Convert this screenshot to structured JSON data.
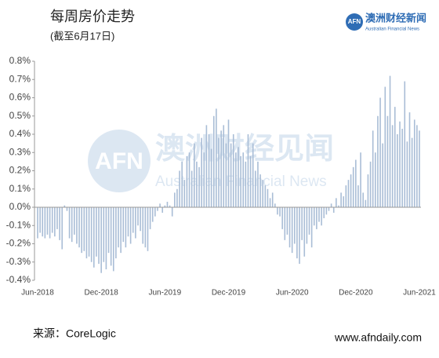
{
  "chart_data": {
    "type": "bar",
    "title": "每周房价走势",
    "subtitle": "(截至6月17日)",
    "source": "来源：CoreLogic",
    "website": "www.afndaily.com",
    "color": "#a9bdd6",
    "categories": [
      "Jun-2018",
      null,
      null,
      null,
      null,
      null,
      null,
      null,
      null,
      null,
      null,
      null,
      null,
      null,
      null,
      null,
      null,
      null,
      null,
      null,
      null,
      null,
      null,
      null,
      null,
      null,
      "Dec-2018",
      null,
      null,
      null,
      null,
      null,
      null,
      null,
      null,
      null,
      null,
      null,
      null,
      null,
      null,
      null,
      null,
      null,
      null,
      null,
      null,
      null,
      null,
      null,
      null,
      null,
      "Jun-2019",
      null,
      null,
      null,
      null,
      null,
      null,
      null,
      null,
      null,
      null,
      null,
      null,
      null,
      null,
      null,
      null,
      null,
      null,
      null,
      null,
      null,
      null,
      null,
      null,
      null,
      "Dec-2019",
      null,
      null,
      null,
      null,
      null,
      null,
      null,
      null,
      null,
      null,
      null,
      null,
      null,
      null,
      null,
      null,
      null,
      null,
      null,
      null,
      null,
      null,
      null,
      null,
      null,
      "Jun-2020",
      null,
      null,
      null,
      null,
      null,
      null,
      null,
      null,
      null,
      null,
      null,
      null,
      null,
      null,
      null,
      null,
      null,
      null,
      null,
      null,
      null,
      null,
      null,
      null,
      null,
      "Dec-2020",
      null,
      null,
      null,
      null,
      null,
      null,
      null,
      null,
      null,
      null,
      null,
      null,
      null,
      null,
      null,
      null,
      null,
      null,
      null,
      null,
      null,
      null,
      null,
      null,
      null,
      "Jun-2021"
    ],
    "values": [
      -0.17,
      -0.14,
      -0.16,
      -0.17,
      -0.15,
      -0.17,
      -0.14,
      -0.16,
      -0.12,
      -0.18,
      -0.23,
      0.01,
      -0.02,
      -0.17,
      -0.19,
      -0.15,
      -0.2,
      -0.22,
      -0.25,
      -0.24,
      -0.28,
      -0.27,
      -0.3,
      -0.33,
      -0.27,
      -0.31,
      -0.36,
      -0.3,
      -0.34,
      -0.25,
      -0.32,
      -0.35,
      -0.28,
      -0.22,
      -0.25,
      -0.19,
      -0.22,
      -0.16,
      -0.2,
      -0.14,
      -0.17,
      -0.1,
      -0.13,
      -0.2,
      -0.22,
      -0.24,
      -0.12,
      -0.08,
      -0.05,
      -0.02,
      0.02,
      -0.03,
      0.01,
      0.03,
      0.01,
      -0.05,
      0.08,
      0.1,
      0.2,
      0.25,
      0.15,
      0.28,
      0.3,
      0.2,
      0.35,
      0.25,
      0.22,
      0.38,
      0.3,
      0.45,
      0.4,
      0.32,
      0.5,
      0.54,
      0.38,
      0.42,
      0.45,
      0.35,
      0.48,
      0.35,
      0.4,
      0.3,
      0.33,
      0.28,
      0.3,
      0.25,
      0.4,
      0.28,
      0.35,
      0.2,
      0.25,
      0.18,
      0.15,
      0.12,
      0.1,
      0.05,
      0.08,
      0.02,
      -0.04,
      -0.05,
      -0.12,
      -0.18,
      -0.15,
      -0.22,
      -0.25,
      -0.2,
      -0.28,
      -0.31,
      -0.18,
      -0.27,
      -0.2,
      -0.15,
      -0.22,
      -0.1,
      -0.12,
      -0.08,
      -0.1,
      -0.06,
      -0.04,
      -0.02,
      0.02,
      -0.03,
      0.05,
      0.01,
      0.08,
      0.06,
      0.12,
      0.15,
      0.18,
      0.22,
      0.26,
      0.12,
      0.3,
      0.08,
      0.04,
      0.18,
      0.25,
      0.42,
      0.3,
      0.5,
      0.6,
      0.35,
      0.66,
      0.5,
      0.72,
      0.45,
      0.55,
      0.4,
      0.47,
      0.43,
      0.69,
      0.36,
      0.52,
      0.38,
      0.48,
      0.45,
      0.42
    ],
    "ylim": [
      -0.4,
      0.8
    ],
    "yticks": [
      {
        "value": -0.4,
        "label": "-0.4%"
      },
      {
        "value": -0.3,
        "label": "-0.3%"
      },
      {
        "value": -0.2,
        "label": "-0.2%"
      },
      {
        "value": -0.1,
        "label": "-0.1%"
      },
      {
        "value": 0,
        "label": "0.0%"
      },
      {
        "value": 0.1,
        "label": "0.1%"
      },
      {
        "value": 0.2,
        "label": "0.2%"
      },
      {
        "value": 0.3,
        "label": "0.3%"
      },
      {
        "value": 0.4,
        "label": "0.4%"
      },
      {
        "value": 0.5,
        "label": "0.5%"
      },
      {
        "value": 0.6,
        "label": "0.6%"
      },
      {
        "value": 0.7,
        "label": "0.7%"
      },
      {
        "value": 0.8,
        "label": "0.8%"
      }
    ],
    "grid": false
  },
  "logo": {
    "mark": "AFN",
    "name": "澳洲财经新闻",
    "english": "Australian Financial News"
  },
  "watermark": {
    "mark": "AFN",
    "name": "澳洲财经见闻",
    "english": "Australian Financial News"
  }
}
